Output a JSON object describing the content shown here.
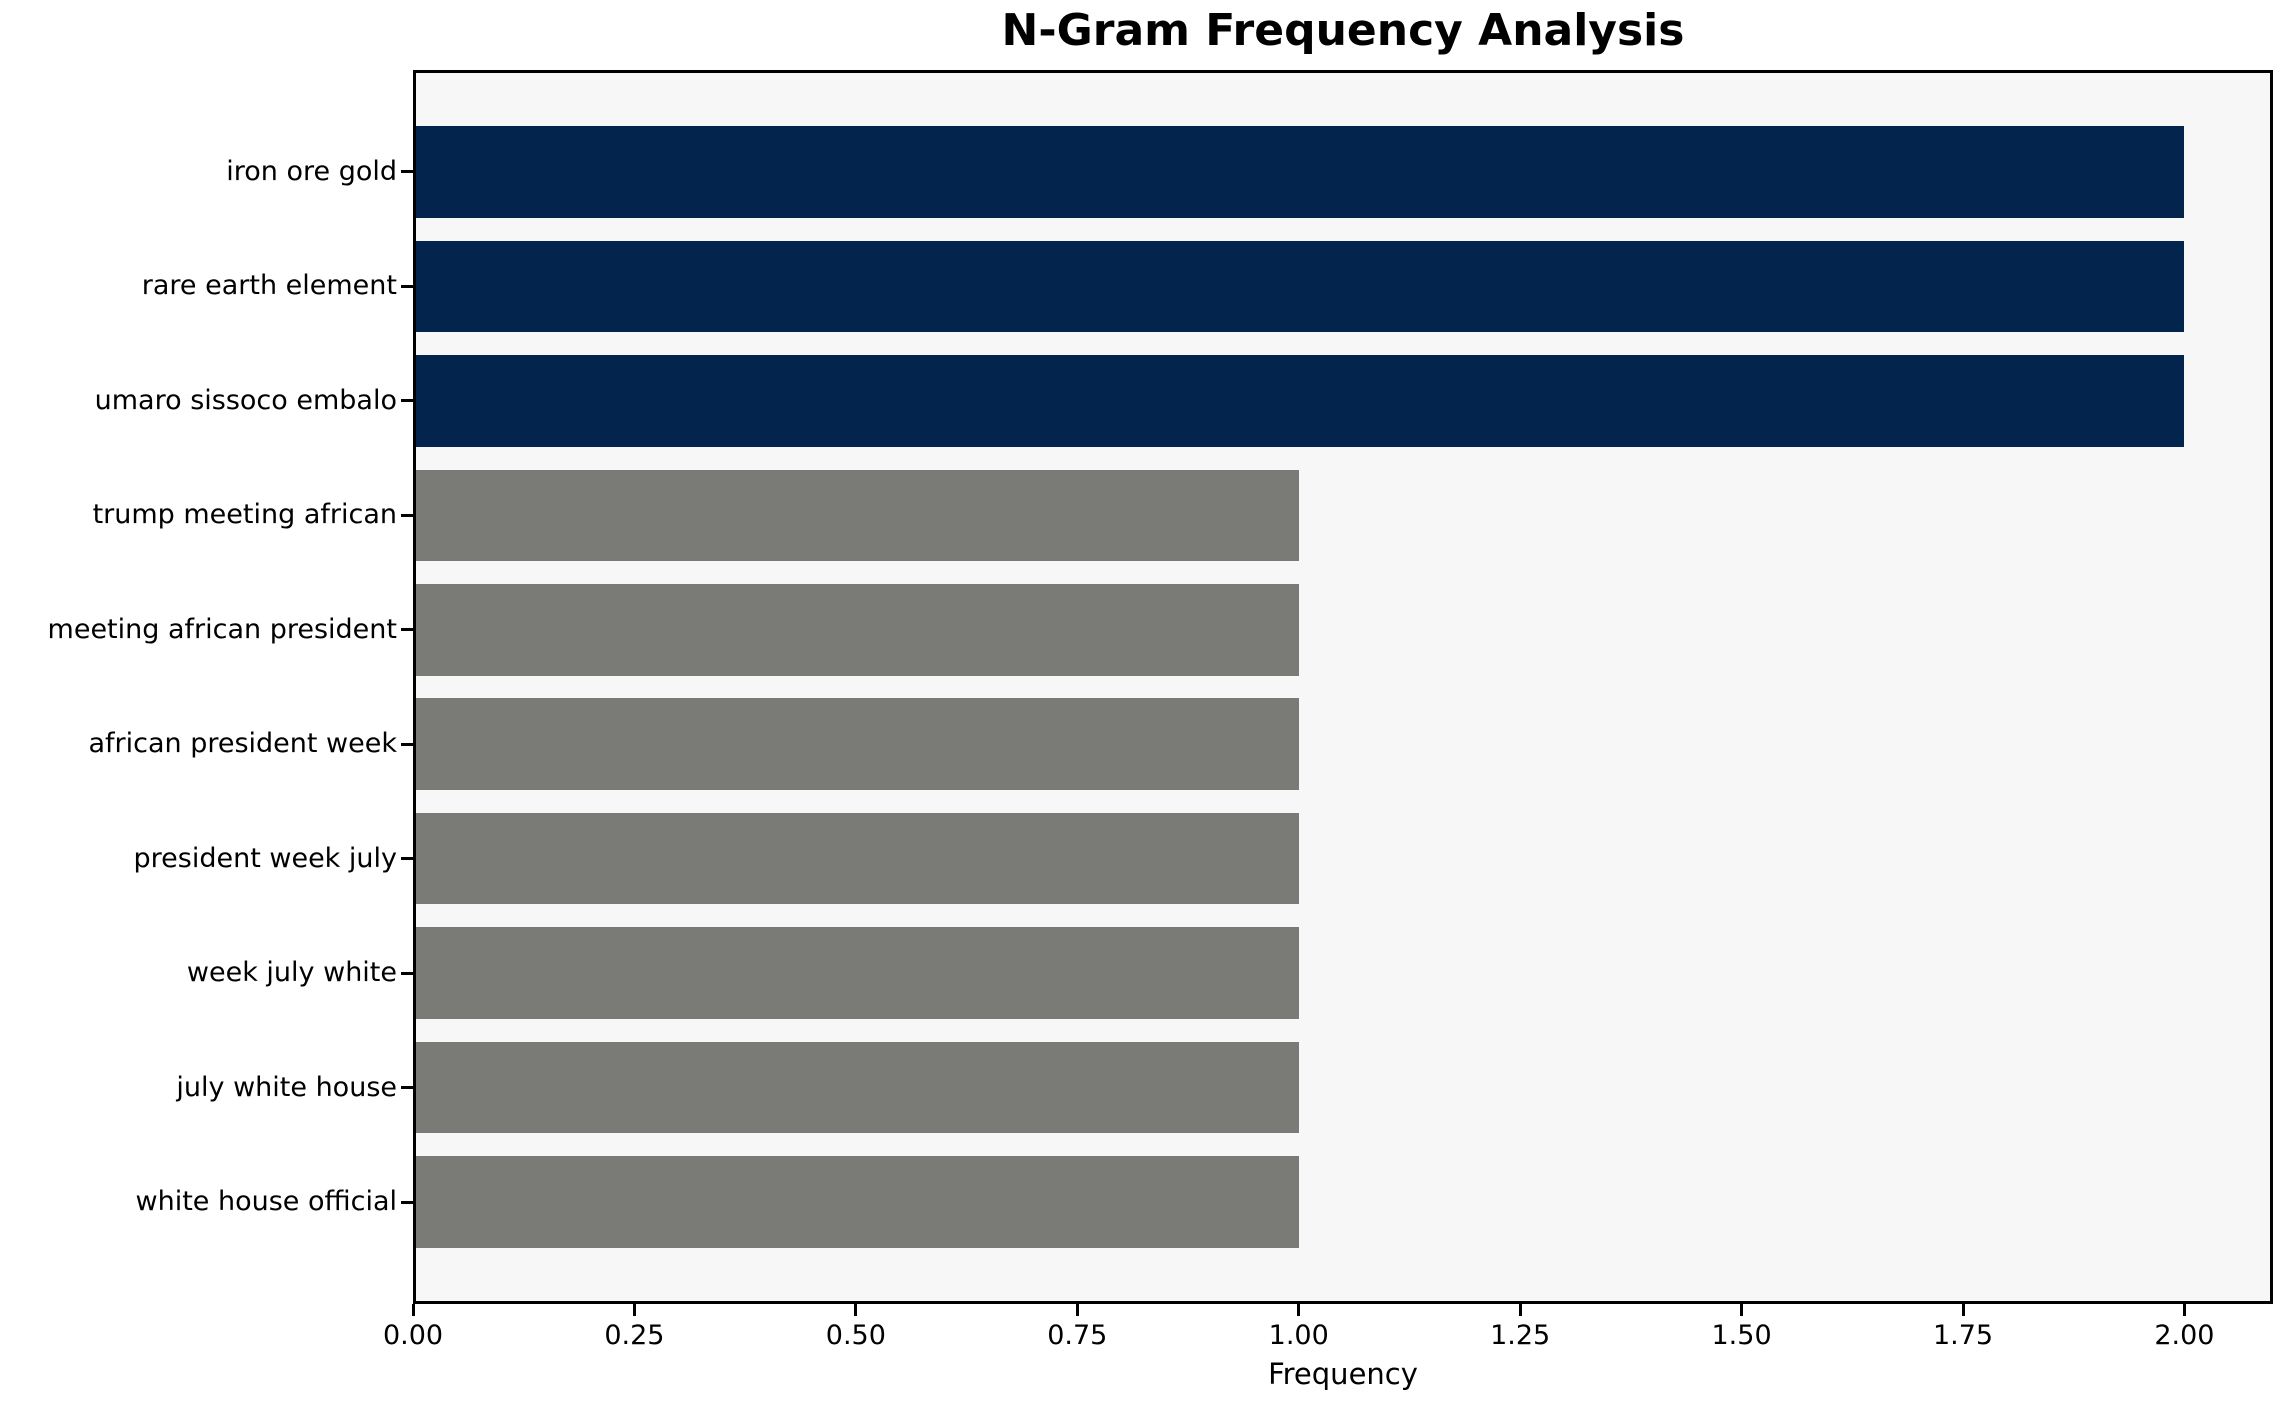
{
  "chart_data": {
    "type": "bar",
    "orientation": "horizontal",
    "title": "N-Gram Frequency Analysis",
    "xlabel": "Frequency",
    "ylabel": "",
    "categories": [
      "iron ore gold",
      "rare earth element",
      "umaro sissoco embalo",
      "trump meeting african",
      "meeting african president",
      "african president week",
      "president week july",
      "week july white",
      "july white house",
      "white house official"
    ],
    "values": [
      2,
      2,
      2,
      1,
      1,
      1,
      1,
      1,
      1,
      1
    ],
    "bar_colors": [
      "#02244d",
      "#02244d",
      "#02244d",
      "#7a7a76",
      "#7a7a76",
      "#7a7a76",
      "#7a7a76",
      "#7a7a76",
      "#7a7a76",
      "#7a7a76"
    ],
    "xlim": [
      0,
      2.1
    ],
    "xticks": [
      0.0,
      0.25,
      0.5,
      0.75,
      1.0,
      1.25,
      1.5,
      1.75,
      2.0
    ],
    "xtick_labels": [
      "0.00",
      "0.25",
      "0.50",
      "0.75",
      "1.00",
      "1.25",
      "1.50",
      "1.75",
      "2.00"
    ],
    "grid": false,
    "legend": "none",
    "colors": {
      "highlight_navy": "#02244d",
      "base_gray": "#7a7a76",
      "plot_background": "#f7f7f7",
      "figure_background": "#ffffff",
      "axis": "#000000",
      "text": "#000000"
    }
  }
}
